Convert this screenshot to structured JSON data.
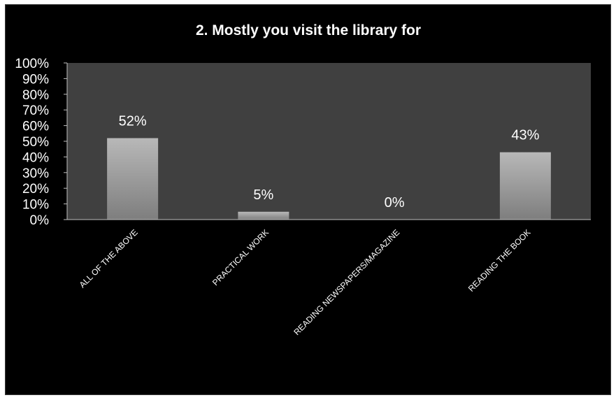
{
  "chart_data": {
    "type": "bar",
    "title": "2. Mostly you visit the library for",
    "categories": [
      "ALL OF THE ABOVE",
      "PRACTICAL WORK",
      "READING NEWSPAPERS/MAGAZINE",
      "READING THE BOOK"
    ],
    "values": [
      52,
      5,
      0,
      43
    ],
    "data_labels": [
      "52%",
      "5%",
      "0%",
      "43%"
    ],
    "ylim": [
      0,
      100
    ],
    "yticks": [
      "0%",
      "10%",
      "20%",
      "30%",
      "40%",
      "50%",
      "60%",
      "70%",
      "80%",
      "90%",
      "100%"
    ],
    "colors": {
      "background": "#000000",
      "plot_area": "#404040",
      "bar_light": "#b5b5b5",
      "bar_dark": "#808080",
      "text": "#ffffff"
    }
  }
}
